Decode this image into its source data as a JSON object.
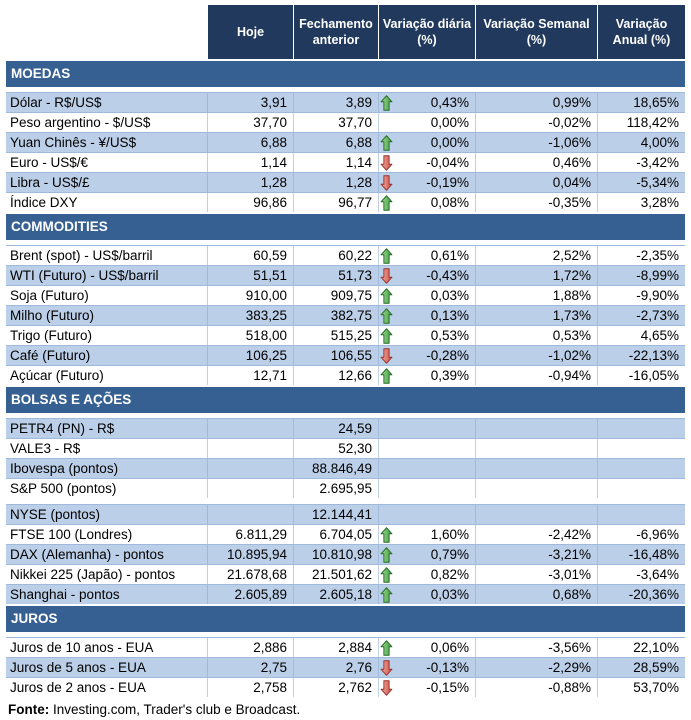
{
  "colors": {
    "header_bg": "#21395C",
    "section_bg": "#376092",
    "row_shaded": "#BCCFE8",
    "grid_line": "#9EB9DA",
    "trend_up_fill": "#4DA44E",
    "trend_down_fill": "#D9574C",
    "header_text": "#FFFFFF"
  },
  "icons": {
    "trend_up": "green-up-block-arrow",
    "trend_down": "red-down-block-arrow"
  },
  "chart_data": {
    "type": "table",
    "columns": [
      "Hoje",
      "Fechamento anterior",
      "Variação diária (%)",
      "Variação Semanal (%)",
      "Variação Anual (%)"
    ],
    "sections": [
      {
        "title": "MOEDAS",
        "first_row_shaded": true,
        "rows": [
          {
            "label": "Dólar - R$/US$",
            "hoje": "3,91",
            "fechamento_anterior": "3,89",
            "trend": "up",
            "variacao_diaria": "0,43%",
            "variacao_semanal": "0,99%",
            "variacao_anual": "18,65%"
          },
          {
            "label": "Peso argentino - $/US$",
            "hoje": "37,70",
            "fechamento_anterior": "37,70",
            "trend": "none",
            "variacao_diaria": "0,00%",
            "variacao_semanal": "-0,02%",
            "variacao_anual": "118,42%"
          },
          {
            "label": "Yuan Chinês - ¥/US$",
            "hoje": "6,88",
            "fechamento_anterior": "6,88",
            "trend": "up",
            "variacao_diaria": "0,00%",
            "variacao_semanal": "-1,06%",
            "variacao_anual": "4,00%"
          },
          {
            "label": "Euro - US$/€",
            "hoje": "1,14",
            "fechamento_anterior": "1,14",
            "trend": "down",
            "variacao_diaria": "-0,04%",
            "variacao_semanal": "0,46%",
            "variacao_anual": "-3,42%"
          },
          {
            "label": "Libra - US$/£",
            "hoje": "1,28",
            "fechamento_anterior": "1,28",
            "trend": "down",
            "variacao_diaria": "-0,19%",
            "variacao_semanal": "0,04%",
            "variacao_anual": "-5,34%"
          },
          {
            "label": "Índice DXY",
            "hoje": "96,86",
            "fechamento_anterior": "96,77",
            "trend": "up",
            "variacao_diaria": "0,08%",
            "variacao_semanal": "-0,35%",
            "variacao_anual": "3,28%"
          }
        ]
      },
      {
        "title": "COMMODITIES",
        "first_row_shaded": false,
        "rows": [
          {
            "label": "Brent (spot) - US$/barril",
            "hoje": "60,59",
            "fechamento_anterior": "60,22",
            "trend": "up",
            "variacao_diaria": "0,61%",
            "variacao_semanal": "2,52%",
            "variacao_anual": "-2,35%"
          },
          {
            "label": "WTI (Futuro) - US$/barril",
            "hoje": "51,51",
            "fechamento_anterior": "51,73",
            "trend": "down",
            "variacao_diaria": "-0,43%",
            "variacao_semanal": "1,72%",
            "variacao_anual": "-8,99%"
          },
          {
            "label": "Soja (Futuro)",
            "hoje": "910,00",
            "fechamento_anterior": "909,75",
            "trend": "up",
            "variacao_diaria": "0,03%",
            "variacao_semanal": "1,88%",
            "variacao_anual": "-9,90%"
          },
          {
            "label": "Milho (Futuro)",
            "hoje": "383,25",
            "fechamento_anterior": "382,75",
            "trend": "up",
            "variacao_diaria": "0,13%",
            "variacao_semanal": "1,73%",
            "variacao_anual": "-2,73%"
          },
          {
            "label": "Trigo (Futuro)",
            "hoje": "518,00",
            "fechamento_anterior": "515,25",
            "trend": "up",
            "variacao_diaria": "0,53%",
            "variacao_semanal": "0,53%",
            "variacao_anual": "4,65%"
          },
          {
            "label": "Café (Futuro)",
            "hoje": "106,25",
            "fechamento_anterior": "106,55",
            "trend": "down",
            "variacao_diaria": "-0,28%",
            "variacao_semanal": "-1,02%",
            "variacao_anual": "-22,13%"
          },
          {
            "label": "Açúcar (Futuro)",
            "hoje": "12,71",
            "fechamento_anterior": "12,66",
            "trend": "up",
            "variacao_diaria": "0,39%",
            "variacao_semanal": "-0,94%",
            "variacao_anual": "-16,05%"
          }
        ]
      },
      {
        "title": "BOLSAS E AÇÕES",
        "first_row_shaded": true,
        "rows": [
          {
            "label": "PETR4 (PN) - R$",
            "hoje": "",
            "fechamento_anterior": "24,59",
            "trend": "none",
            "variacao_diaria": "",
            "variacao_semanal": "",
            "variacao_anual": ""
          },
          {
            "label": "VALE3 - R$",
            "hoje": "",
            "fechamento_anterior": "52,30",
            "trend": "none",
            "variacao_diaria": "",
            "variacao_semanal": "",
            "variacao_anual": ""
          },
          {
            "label": "Ibovespa (pontos)",
            "hoje": "",
            "fechamento_anterior": "88.846,49",
            "trend": "none",
            "variacao_diaria": "",
            "variacao_semanal": "",
            "variacao_anual": ""
          },
          {
            "label": "S&P 500 (pontos)",
            "hoje": "",
            "fechamento_anterior": "2.695,95",
            "trend": "none",
            "variacao_diaria": "",
            "variacao_semanal": "",
            "variacao_anual": ""
          },
          {
            "spacer": true
          },
          {
            "label": "NYSE (pontos)",
            "hoje": "",
            "fechamento_anterior": "12.144,41",
            "trend": "none",
            "variacao_diaria": "",
            "variacao_semanal": "",
            "variacao_anual": ""
          },
          {
            "label": "FTSE 100 (Londres)",
            "hoje": "6.811,29",
            "fechamento_anterior": "6.704,05",
            "trend": "up",
            "variacao_diaria": "1,60%",
            "variacao_semanal": "-2,42%",
            "variacao_anual": "-6,96%"
          },
          {
            "label": "DAX (Alemanha) - pontos",
            "hoje": "10.895,94",
            "fechamento_anterior": "10.810,98",
            "trend": "up",
            "variacao_diaria": "0,79%",
            "variacao_semanal": "-3,21%",
            "variacao_anual": "-16,48%"
          },
          {
            "label": "Nikkei 225 (Japão) - pontos",
            "hoje": "21.678,68",
            "fechamento_anterior": "21.501,62",
            "trend": "up",
            "variacao_diaria": "0,82%",
            "variacao_semanal": "-3,01%",
            "variacao_anual": "-3,64%"
          },
          {
            "label": "Shanghai - pontos",
            "hoje": "2.605,89",
            "fechamento_anterior": "2.605,18",
            "trend": "up",
            "variacao_diaria": "0,03%",
            "variacao_semanal": "0,68%",
            "variacao_anual": "-20,36%"
          }
        ]
      },
      {
        "title": "JUROS",
        "first_row_shaded": false,
        "rows": [
          {
            "label": "Juros de 10 anos - EUA",
            "hoje": "2,886",
            "fechamento_anterior": "2,884",
            "trend": "up",
            "variacao_diaria": "0,06%",
            "variacao_semanal": "-3,56%",
            "variacao_anual": "22,10%"
          },
          {
            "label": "Juros de 5 anos - EUA",
            "hoje": "2,75",
            "fechamento_anterior": "2,76",
            "trend": "down",
            "variacao_diaria": "-0,13%",
            "variacao_semanal": "-2,29%",
            "variacao_anual": "28,59%"
          },
          {
            "label": "Juros de 2 anos - EUA",
            "hoje": "2,758",
            "fechamento_anterior": "2,762",
            "trend": "down",
            "variacao_diaria": "-0,15%",
            "variacao_semanal": "-0,88%",
            "variacao_anual": "53,70%"
          }
        ]
      }
    ],
    "footer": {
      "bold": "Fonte:",
      "text": " Investing.com, Trader's club e Broadcast."
    }
  }
}
